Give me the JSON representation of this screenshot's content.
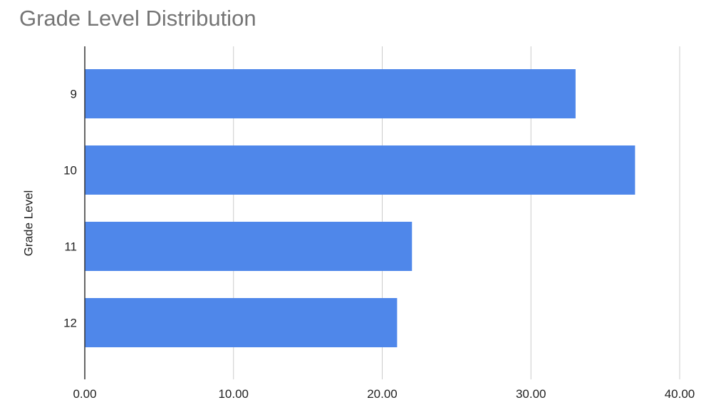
{
  "chart_data": {
    "type": "bar",
    "orientation": "horizontal",
    "title": "Grade Level Distribution",
    "xlabel": "",
    "ylabel": "Grade Level",
    "categories": [
      "9",
      "10",
      "11",
      "12"
    ],
    "values": [
      33,
      37,
      22,
      21
    ],
    "xlim": [
      0,
      40
    ],
    "xticks": [
      "0.00",
      "10.00",
      "20.00",
      "30.00",
      "40.00"
    ],
    "grid": true,
    "legend": "none",
    "bar_color": "#4f87ea",
    "grid_color": "#cccccc",
    "axis_color": "#333333"
  }
}
